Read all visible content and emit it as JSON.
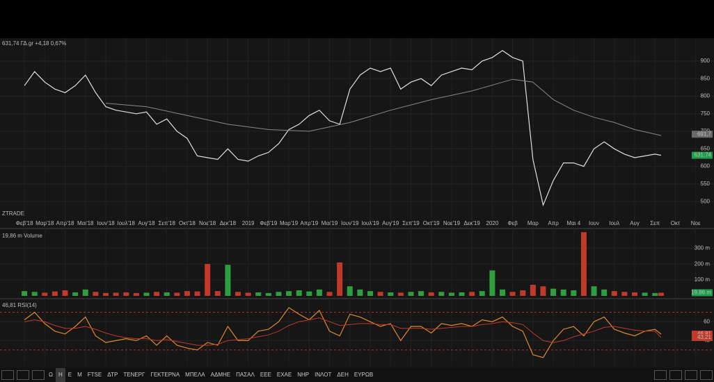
{
  "chart_data": [
    {
      "type": "line",
      "title": "631,74 ΓΔ.gr +4,18 0,67%",
      "title_color": "#3fbf5f",
      "watermark": "ZTRADE",
      "xlim": [
        -1.2,
        33.9
      ],
      "ylim": [
        451,
        965
      ],
      "grid": true,
      "xticks": [
        {
          "value": 0,
          "label": "Φεβ'18"
        },
        {
          "value": 1,
          "label": "Μαρ'18"
        },
        {
          "value": 2,
          "label": "Απρ'18"
        },
        {
          "value": 3,
          "label": "Μαι'18"
        },
        {
          "value": 4,
          "label": "Ιουν'18"
        },
        {
          "value": 5,
          "label": "Ιουλ'18"
        },
        {
          "value": 6,
          "label": "Αυγ'18"
        },
        {
          "value": 7,
          "label": "Σεπ'18"
        },
        {
          "value": 8,
          "label": "Οκτ'18"
        },
        {
          "value": 9,
          "label": "Νοε'18"
        },
        {
          "value": 10,
          "label": "Δεκ'18"
        },
        {
          "value": 11,
          "label": "2019"
        },
        {
          "value": 12,
          "label": "Φεβ'19"
        },
        {
          "value": 13,
          "label": "Μαρ'19"
        },
        {
          "value": 14,
          "label": "Απρ'19"
        },
        {
          "value": 15,
          "label": "Μαι'19"
        },
        {
          "value": 16,
          "label": "Ιουν'19"
        },
        {
          "value": 17,
          "label": "Ιουλ'19"
        },
        {
          "value": 18,
          "label": "Αυγ'19"
        },
        {
          "value": 19,
          "label": "Σεπ'19"
        },
        {
          "value": 20,
          "label": "Οκτ'19"
        },
        {
          "value": 21,
          "label": "Νοε'19"
        },
        {
          "value": 22,
          "label": "Δεκ'19"
        },
        {
          "value": 23,
          "label": "2020"
        },
        {
          "value": 24,
          "label": "Φεβ"
        },
        {
          "value": 25,
          "label": "Μαρ"
        },
        {
          "value": 26,
          "label": "Απρ"
        },
        {
          "value": 27,
          "label": "Μαι 4"
        },
        {
          "value": 28,
          "label": "Ιουν"
        },
        {
          "value": 29,
          "label": "Ιουλ"
        },
        {
          "value": 30,
          "label": "Αυγ"
        },
        {
          "value": 31,
          "label": "Σεπ"
        },
        {
          "value": 32,
          "label": "Οκτ"
        },
        {
          "value": 33,
          "label": "Νοε"
        }
      ],
      "yticks": [
        500,
        550,
        600,
        650,
        700,
        750,
        800,
        850,
        900
      ],
      "x": [
        0,
        0.5,
        1,
        1.5,
        2,
        2.5,
        3,
        3.5,
        4,
        4.5,
        5,
        5.5,
        6,
        6.5,
        7,
        7.5,
        8,
        8.5,
        9,
        9.5,
        10,
        10.5,
        11,
        11.5,
        12,
        12.5,
        13,
        13.5,
        14,
        14.5,
        15,
        15.5,
        16,
        16.5,
        17,
        17.5,
        18,
        18.5,
        19,
        19.5,
        20,
        20.5,
        21,
        21.5,
        22,
        22.5,
        23,
        23.5,
        24,
        24.5,
        25,
        25.5,
        26,
        26.5,
        27,
        27.5,
        28,
        28.5,
        29,
        29.5,
        30,
        30.5,
        31,
        31.3
      ],
      "series": [
        {
          "color": "#e0e0e0",
          "values": [
            830,
            870,
            840,
            820,
            810,
            830,
            860,
            810,
            770,
            760,
            755,
            750,
            755,
            720,
            735,
            700,
            680,
            630,
            625,
            620,
            650,
            620,
            615,
            630,
            640,
            665,
            705,
            720,
            745,
            760,
            730,
            720,
            820,
            860,
            880,
            870,
            880,
            820,
            840,
            850,
            830,
            860,
            870,
            880,
            875,
            900,
            910,
            930,
            910,
            900,
            620,
            490,
            560,
            610,
            610,
            600,
            650,
            670,
            650,
            635,
            625,
            630,
            635,
            631.74
          ]
        },
        {
          "color": "#8a8a8a",
          "x": [
            4,
            6,
            8,
            10,
            12,
            14,
            16,
            18,
            20,
            22,
            24,
            25,
            26,
            27,
            28,
            29,
            30,
            31.3
          ],
          "values": [
            780,
            770,
            745,
            720,
            705,
            700,
            725,
            760,
            790,
            815,
            848,
            840,
            790,
            760,
            740,
            725,
            705,
            688
          ]
        }
      ],
      "price_tags": [
        {
          "value": 691.7,
          "label": "691,7",
          "color": "#6a6a6a"
        },
        {
          "value": 631.74,
          "label": "631,74",
          "color": "#1e9e4a"
        }
      ]
    },
    {
      "type": "bar",
      "title": "19,86 m Volume",
      "title_color": "#3fbf5f",
      "ylim": [
        0,
        410
      ],
      "grid": true,
      "up_color": "#2e9e3e",
      "down_color": "#c0392b",
      "yticks": [
        {
          "value": 100,
          "label": "100 m"
        },
        {
          "value": 200,
          "label": "200 m"
        },
        {
          "value": 300,
          "label": "300 m"
        }
      ],
      "values": [
        30,
        25,
        20,
        28,
        35,
        22,
        40,
        25,
        18,
        20,
        22,
        18,
        20,
        25,
        22,
        20,
        30,
        28,
        200,
        30,
        195,
        25,
        20,
        22,
        18,
        25,
        30,
        35,
        28,
        40,
        25,
        210,
        60,
        40,
        30,
        25,
        22,
        20,
        25,
        30,
        22,
        25,
        20,
        22,
        25,
        30,
        160,
        40,
        25,
        35,
        70,
        60,
        45,
        40,
        35,
        400,
        60,
        40,
        30,
        25,
        22,
        20,
        18,
        19.86
      ],
      "price_tags": [
        {
          "value": 19.86,
          "label": "19,86 m",
          "color": "#1e9e4a"
        }
      ]
    },
    {
      "type": "line",
      "title": "46,81 RSI(14)",
      "title_color": "#e08a2a",
      "ylim": [
        13,
        83
      ],
      "grid": true,
      "levels": [
        70,
        30
      ],
      "level_color": "#b03030",
      "yticks": [
        40,
        60
      ],
      "series": [
        {
          "color": "#e08a2a",
          "values": [
            62,
            70,
            58,
            50,
            47,
            55,
            65,
            45,
            38,
            40,
            42,
            40,
            45,
            35,
            45,
            35,
            32,
            30,
            38,
            35,
            55,
            40,
            40,
            50,
            52,
            60,
            75,
            68,
            62,
            72,
            50,
            45,
            68,
            65,
            60,
            55,
            58,
            40,
            55,
            55,
            48,
            58,
            56,
            58,
            55,
            62,
            60,
            65,
            55,
            50,
            25,
            22,
            40,
            52,
            55,
            45,
            60,
            65,
            52,
            48,
            45,
            50,
            52,
            46.81
          ]
        },
        {
          "color": "#c0392b",
          "values": [
            60,
            62,
            60,
            56,
            53,
            53,
            55,
            52,
            48,
            45,
            43,
            42,
            42,
            40,
            41,
            39,
            37,
            35,
            35,
            36,
            40,
            41,
            42,
            44,
            46,
            50,
            56,
            60,
            62,
            64,
            60,
            56,
            57,
            58,
            58,
            57,
            57,
            53,
            53,
            53,
            52,
            53,
            54,
            55,
            55,
            57,
            58,
            60,
            59,
            57,
            48,
            40,
            38,
            40,
            44,
            47,
            50,
            54,
            55,
            53,
            51,
            50,
            50,
            43.21
          ]
        }
      ],
      "price_tags": [
        {
          "value": 46.81,
          "label": "46,81",
          "color": "#c0392b"
        },
        {
          "value": 43.21,
          "label": "43,21",
          "color": "#c0392b"
        }
      ]
    }
  ],
  "toolbar": {
    "active": 1,
    "buttons": [
      "Ω",
      "Η",
      "Ε",
      "Μ",
      "FTSE",
      "ΔΤΡ",
      "ΤΕΝΕΡΓ",
      "ΓΕΚΤΕΡΝΑ",
      "ΜΠΕΛΑ",
      "ΑΔΜΗΕ",
      "ΠΑΣΑΛ",
      "ΕΕΕ",
      "ΕΧΑΕ",
      "ΝΗΡ",
      "ΙΝΛΟΤ",
      "ΔΕΗ",
      "ΕΥΡΩΒ"
    ]
  }
}
